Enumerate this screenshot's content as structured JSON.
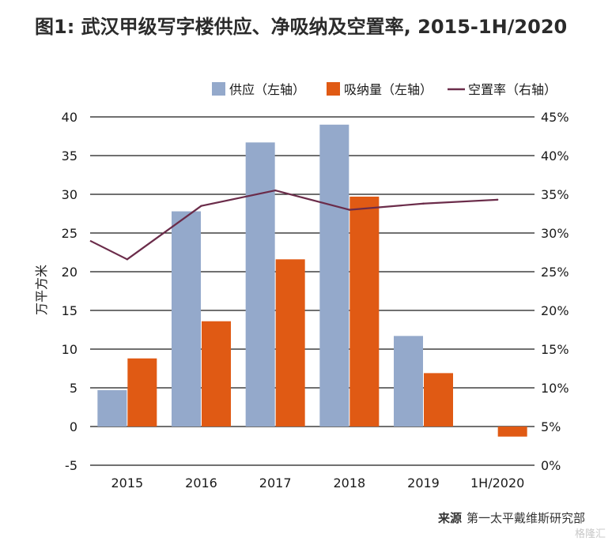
{
  "title": "图1: 武汉甲级写字楼供应、净吸纳及空置率, 2015-1H/2020",
  "source": {
    "label": "来源",
    "text": "第一太平戴维斯研究部"
  },
  "watermark": "格隆汇",
  "colors": {
    "supply": "#94a9cb",
    "absorption": "#e05a14",
    "vacancy": "#6b2c4a",
    "axis": "#1a1a1a"
  },
  "chart_data": {
    "type": "bar",
    "categories": [
      "2015",
      "2016",
      "2017",
      "2018",
      "2019",
      "1H/2020"
    ],
    "series": [
      {
        "name": "供应（左轴）",
        "type": "bar",
        "axis": "left",
        "values": [
          4.7,
          27.8,
          36.7,
          39.0,
          11.7,
          null
        ]
      },
      {
        "name": "吸纳量（左轴）",
        "type": "bar",
        "axis": "left",
        "values": [
          8.8,
          13.6,
          21.6,
          29.7,
          6.9,
          -1.3
        ]
      },
      {
        "name": "空置率（右轴）",
        "type": "line",
        "axis": "right",
        "values": [
          26.6,
          33.5,
          35.5,
          33.0,
          33.8,
          34.3
        ]
      }
    ],
    "line_start_value": 29.0,
    "ylabel": "万平方米",
    "ylim": [
      -5,
      40
    ],
    "yticks": [
      "-5",
      "0",
      "5",
      "10",
      "15",
      "20",
      "25",
      "30",
      "35",
      "40"
    ],
    "y2lim": [
      0,
      45
    ],
    "y2ticks": [
      "0%",
      "5%",
      "10%",
      "15%",
      "20%",
      "25%",
      "30%",
      "35%",
      "40%",
      "45%"
    ],
    "grid": true,
    "legend_position": "top-right"
  }
}
